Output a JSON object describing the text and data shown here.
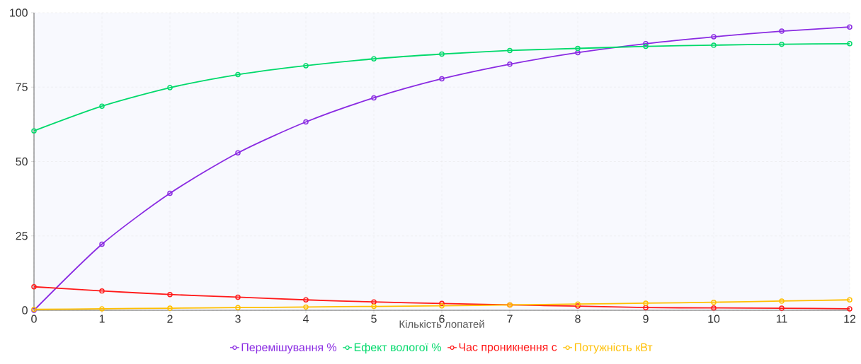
{
  "chart_data": {
    "type": "line",
    "xlabel": "Кількість лопатей",
    "x": [
      0,
      1,
      2,
      3,
      4,
      5,
      6,
      7,
      8,
      9,
      10,
      11,
      12
    ],
    "series": [
      {
        "name": "Перемішування %",
        "color": "#8a2be2",
        "values": [
          0,
          22.2,
          39.3,
          52.9,
          63.3,
          71.4,
          77.8,
          82.7,
          86.6,
          89.6,
          91.9,
          93.8,
          95.2
        ]
      },
      {
        "name": "Ефект вологої %",
        "color": "#00d96b",
        "values": [
          60.3,
          68.6,
          74.8,
          79.2,
          82.2,
          84.5,
          86.1,
          87.3,
          88.0,
          88.7,
          89.1,
          89.4,
          89.6
        ]
      },
      {
        "name": "Час проникнення с",
        "color": "#ff1a1a",
        "values": [
          7.9,
          6.5,
          5.3,
          4.4,
          3.5,
          2.8,
          2.3,
          1.8,
          1.4,
          0.9,
          0.8,
          0.7,
          0.5
        ]
      },
      {
        "name": "Потужність кВт",
        "color": "#ffbf00",
        "values": [
          0.3,
          0.5,
          0.7,
          0.9,
          1.1,
          1.3,
          1.5,
          1.8,
          2.1,
          2.4,
          2.7,
          3.1,
          3.5
        ]
      }
    ],
    "xlim": [
      0,
      12
    ],
    "xticks": [
      0,
      1,
      2,
      3,
      4,
      5,
      6,
      7,
      8,
      9,
      10,
      11,
      12
    ],
    "ylim": [
      0,
      100
    ],
    "yticks": [
      0,
      25,
      50,
      75,
      100
    ],
    "grid": true,
    "legend": "bottom",
    "marker": "circle",
    "line_style": "solid"
  }
}
